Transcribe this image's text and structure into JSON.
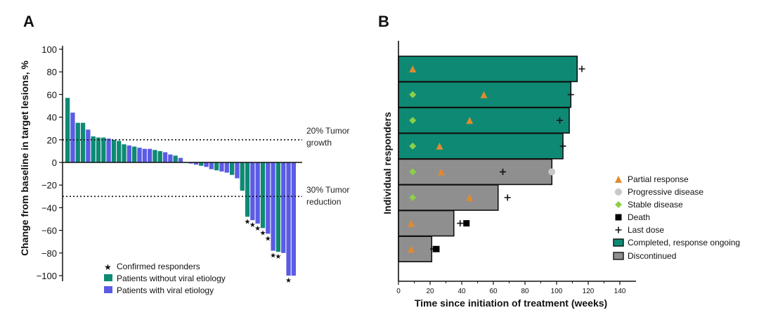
{
  "figure": {
    "panels": [
      {
        "label": "A"
      },
      {
        "label": "B"
      }
    ]
  },
  "chart_data": [
    {
      "type": "bar",
      "panel": "A",
      "title": "",
      "xlabel": "",
      "ylabel": "Change from baseline in target lesions, %",
      "ylim": [
        -105,
        105
      ],
      "yticks": [
        100,
        80,
        60,
        40,
        20,
        0,
        -20,
        -40,
        -60,
        -80,
        -100
      ],
      "grid": false,
      "colors": {
        "non_viral": "#0e8a74",
        "viral": "#5b5be6"
      },
      "values": [
        57,
        44,
        35,
        35,
        29,
        23,
        22,
        22,
        21,
        20,
        19,
        16,
        15,
        14,
        13,
        12,
        12,
        11,
        10,
        9,
        7,
        6,
        4,
        0,
        -1,
        -2,
        -3,
        -4,
        -6,
        -7,
        -8,
        -9,
        -11,
        -14,
        -25,
        -48,
        -51,
        -54,
        -58,
        -63,
        -78,
        -79,
        -80,
        -100,
        -100
      ],
      "etiology": [
        "non_viral",
        "viral",
        "non_viral",
        "non_viral",
        "viral",
        "non_viral",
        "non_viral",
        "non_viral",
        "viral",
        "non_viral",
        "non_viral",
        "non_viral",
        "viral",
        "non_viral",
        "viral",
        "viral",
        "viral",
        "non_viral",
        "non_viral",
        "viral",
        "viral",
        "non_viral",
        "viral",
        "non_viral",
        "viral",
        "viral",
        "non_viral",
        "viral",
        "viral",
        "non_viral",
        "viral",
        "viral",
        "non_viral",
        "viral",
        "non_viral",
        "non_viral",
        "viral",
        "viral",
        "non_viral",
        "viral",
        "viral",
        "non_viral",
        "viral",
        "viral",
        "viral"
      ],
      "confirmed_responder_indices": [
        35,
        36,
        37,
        38,
        39,
        40,
        41,
        43
      ],
      "reference_lines": [
        {
          "y": 20,
          "label_line1": "20% Tumor",
          "label_line2": "growth"
        },
        {
          "y": -30,
          "label_line1": "30% Tumor",
          "label_line2": "reduction"
        }
      ],
      "legend_position": "bottom-center",
      "legend": [
        {
          "key": "responder",
          "label": "Confirmed responders",
          "symbol": "★"
        },
        {
          "key": "non_viral",
          "label": "Patients without viral etiology"
        },
        {
          "key": "viral",
          "label": "Patients with viral etiology"
        }
      ]
    },
    {
      "type": "swimmer",
      "panel": "B",
      "xlabel": "Time since initiation of treatment (weeks)",
      "ylabel": "Individual responders",
      "xlim": [
        0,
        145
      ],
      "xticks": [
        0,
        20,
        40,
        60,
        80,
        100,
        120,
        140
      ],
      "colors": {
        "ongoing": "#0e8a74",
        "discontinued": "#8f8f8f",
        "partial": "#e08a2f",
        "progressive": "#c8c8c8",
        "stable": "#8ccf4a",
        "death": "#000000"
      },
      "lanes": [
        {
          "duration": 113,
          "status": "ongoing",
          "events": [
            {
              "type": "partial",
              "week": 9
            },
            {
              "type": "last_dose",
              "week": 116
            }
          ]
        },
        {
          "duration": 109,
          "status": "ongoing",
          "events": [
            {
              "type": "stable",
              "week": 9
            },
            {
              "type": "partial",
              "week": 54
            },
            {
              "type": "last_dose",
              "week": 109
            }
          ]
        },
        {
          "duration": 108,
          "status": "ongoing",
          "events": [
            {
              "type": "stable",
              "week": 9
            },
            {
              "type": "partial",
              "week": 45
            },
            {
              "type": "last_dose",
              "week": 102
            }
          ]
        },
        {
          "duration": 104,
          "status": "ongoing",
          "events": [
            {
              "type": "stable",
              "week": 9
            },
            {
              "type": "partial",
              "week": 26
            },
            {
              "type": "last_dose",
              "week": 104
            }
          ]
        },
        {
          "duration": 97,
          "status": "discontinued",
          "events": [
            {
              "type": "stable",
              "week": 9
            },
            {
              "type": "partial",
              "week": 27
            },
            {
              "type": "last_dose",
              "week": 66
            },
            {
              "type": "progressive",
              "week": 97
            }
          ]
        },
        {
          "duration": 63,
          "status": "discontinued",
          "events": [
            {
              "type": "stable",
              "week": 9
            },
            {
              "type": "partial",
              "week": 45
            },
            {
              "type": "last_dose",
              "week": 69
            }
          ]
        },
        {
          "duration": 35,
          "status": "discontinued",
          "events": [
            {
              "type": "partial",
              "week": 8
            },
            {
              "type": "last_dose",
              "week": 39
            },
            {
              "type": "death",
              "week": 43
            }
          ]
        },
        {
          "duration": 21,
          "status": "discontinued",
          "events": [
            {
              "type": "partial",
              "week": 8
            },
            {
              "type": "last_dose",
              "week": 22
            },
            {
              "type": "death",
              "week": 24
            }
          ]
        }
      ],
      "legend_position": "right",
      "legend": [
        {
          "key": "partial",
          "label": "Partial response"
        },
        {
          "key": "progressive",
          "label": "Progressive disease"
        },
        {
          "key": "stable",
          "label": "Stable disease"
        },
        {
          "key": "death",
          "label": "Death"
        },
        {
          "key": "last_dose",
          "label": "Last dose"
        },
        {
          "key": "ongoing",
          "label": "Completed, response ongoing"
        },
        {
          "key": "discontinued",
          "label": "Discontinued"
        }
      ]
    }
  ]
}
